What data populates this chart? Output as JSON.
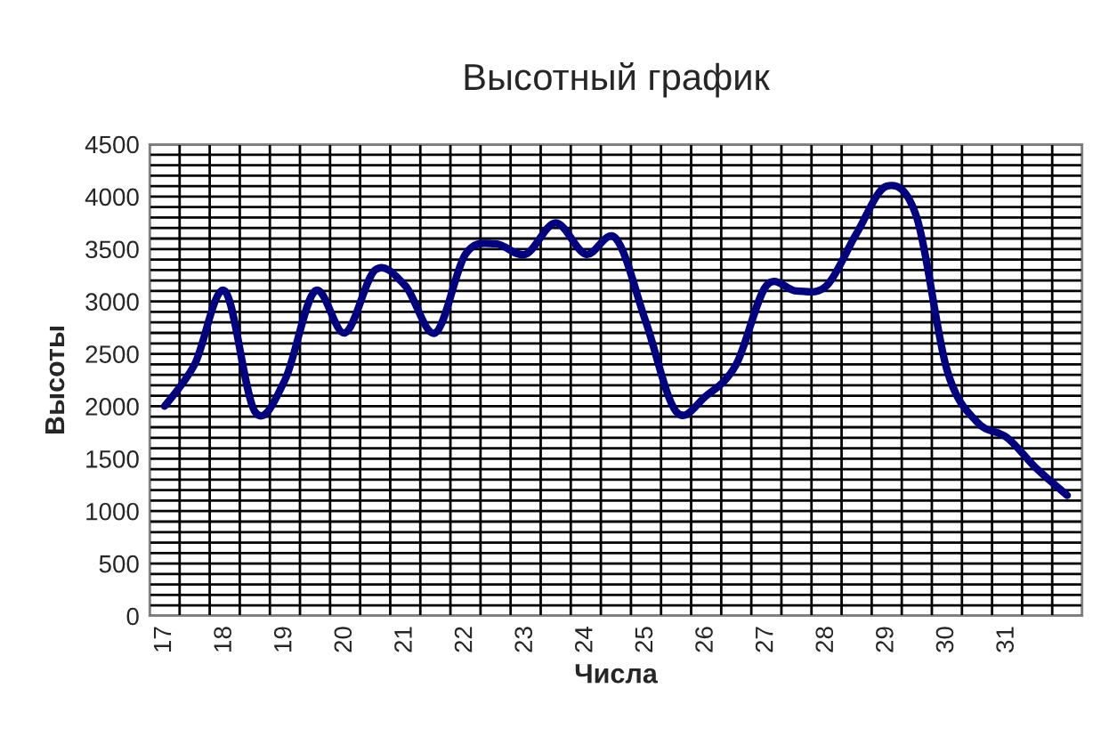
{
  "chart_data": {
    "type": "line",
    "title": "Высотный график",
    "xlabel": "Числа",
    "ylabel": "Высоты",
    "categories": [
      "17",
      null,
      "18",
      null,
      "19",
      null,
      "20",
      null,
      "21",
      null,
      "22",
      null,
      "23",
      null,
      "24",
      null,
      "25",
      null,
      "26",
      null,
      "27",
      null,
      "28",
      null,
      "29",
      null,
      "30",
      null,
      "31",
      null,
      null
    ],
    "series": [
      {
        "color": "#000080",
        "values": [
          2000,
          2400,
          3100,
          1950,
          2250,
          3100,
          2700,
          3300,
          3150,
          2700,
          3450,
          3550,
          3450,
          3750,
          3450,
          3600,
          2800,
          1950,
          2100,
          2400,
          3150,
          3100,
          3150,
          3650,
          4100,
          3800,
          2350,
          1850,
          1700,
          1400,
          1150
        ]
      }
    ],
    "ylim": [
      0,
      4500
    ],
    "yticks": [
      0,
      {
        "value": 100,
        "label": null
      },
      {
        "value": 200,
        "label": null
      },
      {
        "value": 300,
        "label": null
      },
      {
        "value": 400,
        "label": null
      },
      500,
      {
        "value": 600,
        "label": null
      },
      {
        "value": 700,
        "label": null
      },
      {
        "value": 800,
        "label": null
      },
      {
        "value": 900,
        "label": null
      },
      1000,
      {
        "value": 1100,
        "label": null
      },
      {
        "value": 1200,
        "label": null
      },
      {
        "value": 1300,
        "label": null
      },
      {
        "value": 1400,
        "label": null
      },
      1500,
      {
        "value": 1600,
        "label": null
      },
      {
        "value": 1700,
        "label": null
      },
      {
        "value": 1800,
        "label": null
      },
      {
        "value": 1900,
        "label": null
      },
      2000,
      {
        "value": 2100,
        "label": null
      },
      {
        "value": 2200,
        "label": null
      },
      {
        "value": 2300,
        "label": null
      },
      {
        "value": 2400,
        "label": null
      },
      2500,
      {
        "value": 2600,
        "label": null
      },
      {
        "value": 2700,
        "label": null
      },
      {
        "value": 2800,
        "label": null
      },
      {
        "value": 2900,
        "label": null
      },
      3000,
      {
        "value": 3100,
        "label": null
      },
      {
        "value": 3200,
        "label": null
      },
      {
        "value": 3300,
        "label": null
      },
      {
        "value": 3400,
        "label": null
      },
      3500,
      {
        "value": 3600,
        "label": null
      },
      {
        "value": 3700,
        "label": null
      },
      {
        "value": 3800,
        "label": null
      },
      {
        "value": 3900,
        "label": null
      },
      4000,
      {
        "value": 4100,
        "label": null
      },
      {
        "value": 4200,
        "label": null
      },
      {
        "value": 4300,
        "label": null
      },
      {
        "value": 4400,
        "label": null
      },
      4500
    ],
    "grid": true,
    "legend": false,
    "marker": "none",
    "line_style": "solid"
  }
}
